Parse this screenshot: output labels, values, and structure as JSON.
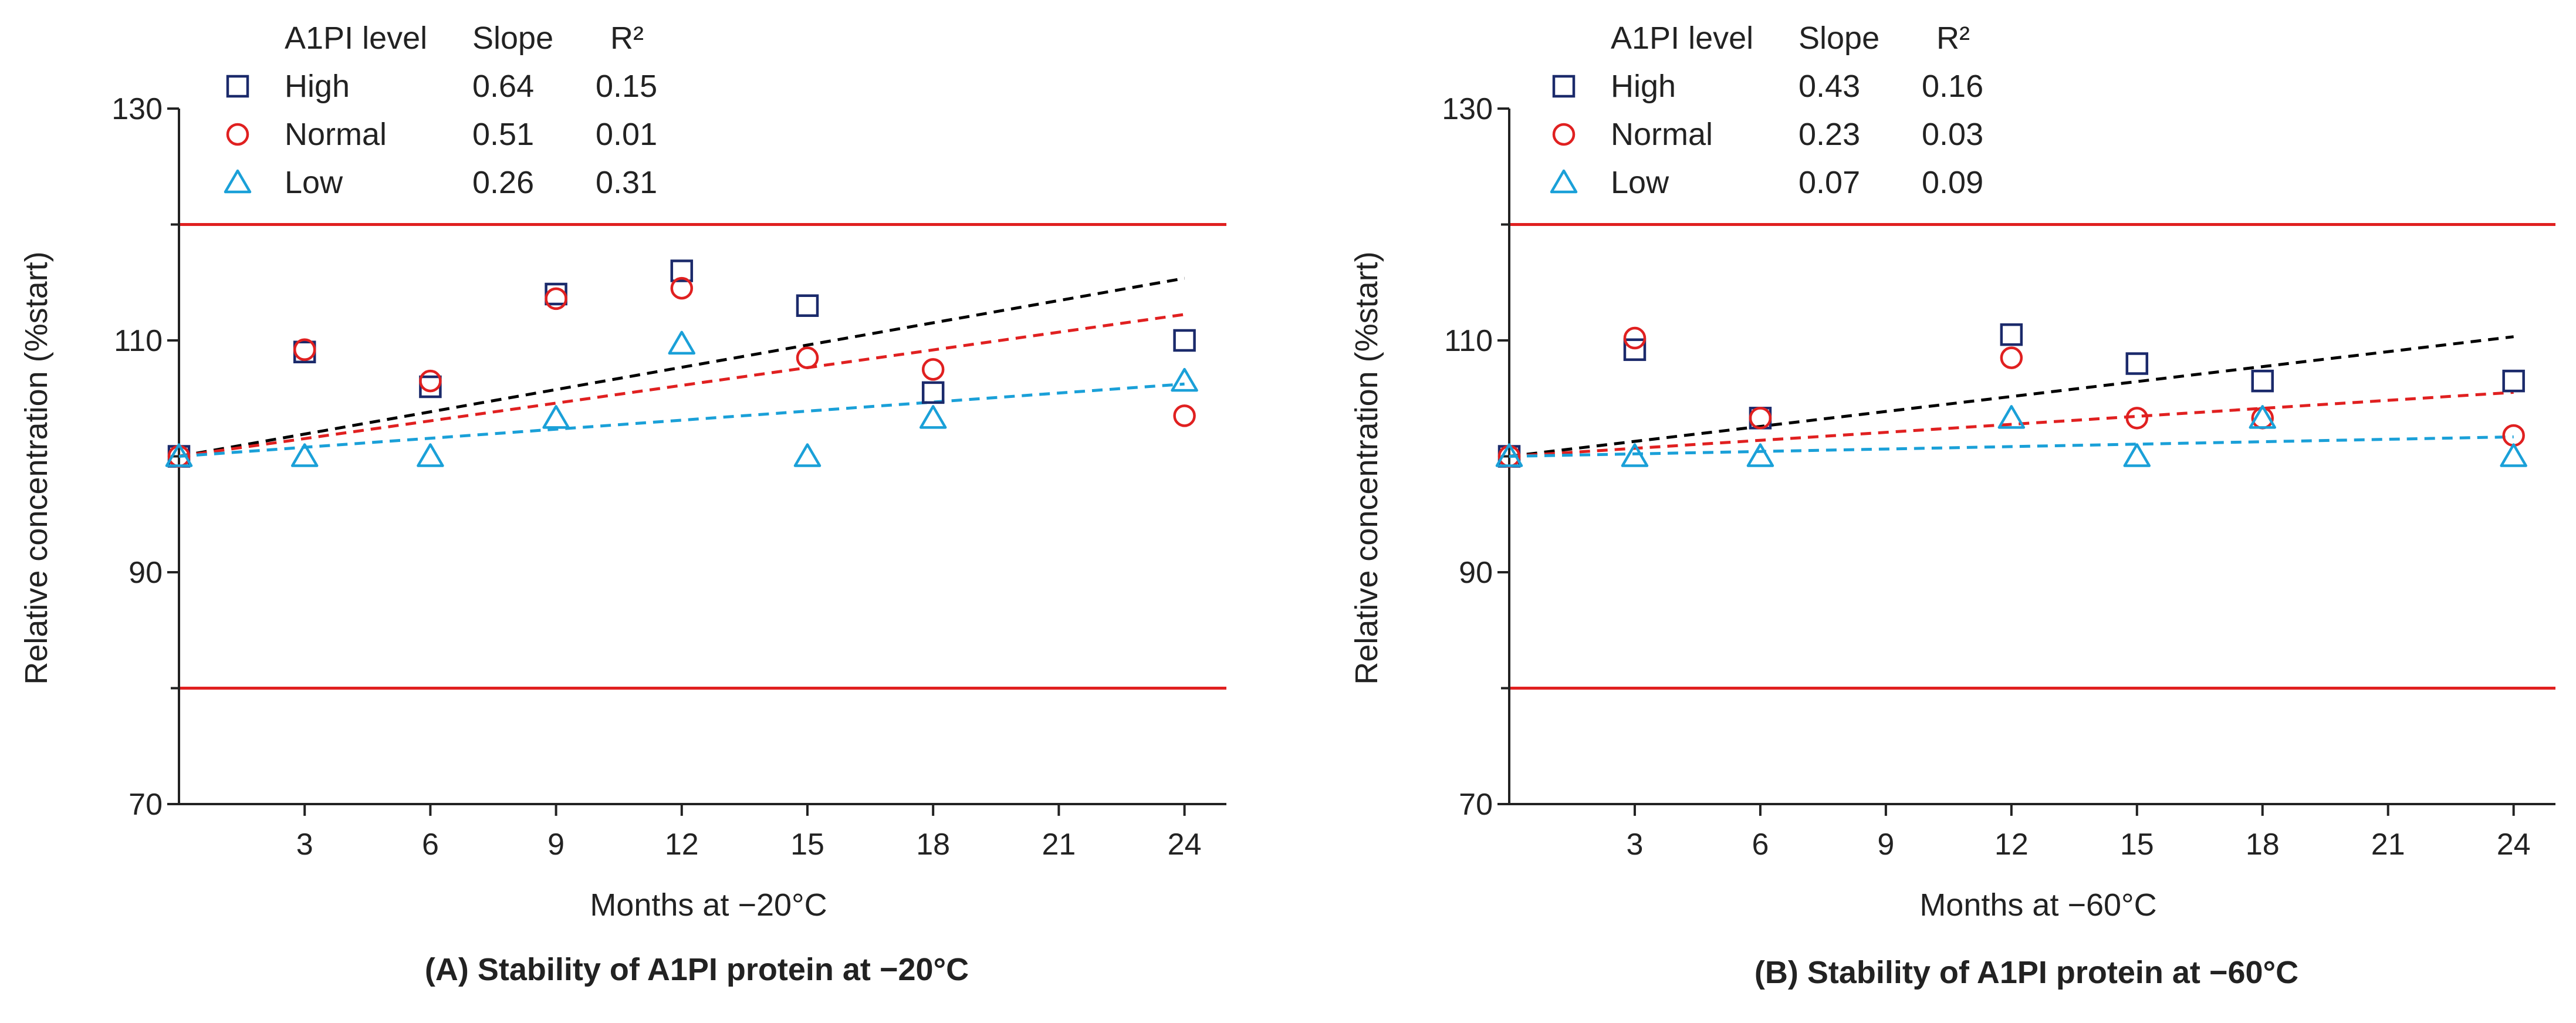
{
  "chart_data": [
    {
      "type": "scatter",
      "panel": "A",
      "title": "(A) Stability of A1PI protein at −20°C",
      "xlabel": "Months at −20°C",
      "ylabel": "Relative concentration (%start)",
      "xlim": [
        0,
        25
      ],
      "ylim": [
        70,
        130
      ],
      "xticks": [
        3,
        6,
        9,
        12,
        15,
        18,
        21,
        24
      ],
      "yticks": [
        70,
        90,
        110,
        130
      ],
      "limits": [
        80,
        120
      ],
      "limit_color": "#e02020",
      "grid": false,
      "legend_position": "top-left",
      "legend_headers": {
        "level": "A1PI level",
        "slope": "Slope",
        "r2": "R²"
      },
      "series": [
        {
          "name": "High",
          "marker": "square",
          "color": "#1b2a6b",
          "slope": "0.64",
          "r2": "0.15",
          "trend_color": "#000000",
          "trend_slope": 0.64,
          "trend_intercept": 100,
          "x": [
            0,
            3,
            6,
            9,
            12,
            15,
            18,
            24
          ],
          "y": [
            100,
            109,
            106,
            114,
            116,
            113,
            105.5,
            110
          ]
        },
        {
          "name": "Normal",
          "marker": "circle",
          "color": "#e02020",
          "slope": "0.51",
          "r2": "0.01",
          "trend_color": "#e02020",
          "trend_slope": 0.51,
          "trend_intercept": 100,
          "x": [
            0,
            3,
            6,
            9,
            12,
            15,
            18,
            24
          ],
          "y": [
            100,
            109.2,
            106.5,
            113.6,
            114.5,
            108.5,
            107.5,
            103.5
          ]
        },
        {
          "name": "Low",
          "marker": "triangle",
          "color": "#1aa0d8",
          "slope": "0.26",
          "r2": "0.31",
          "trend_color": "#1aa0d8",
          "trend_slope": 0.26,
          "trend_intercept": 100,
          "x": [
            0,
            3,
            6,
            9,
            12,
            15,
            18,
            24
          ],
          "y": [
            100,
            100,
            100,
            103.3,
            109.7,
            100,
            103.3,
            106.5
          ]
        }
      ]
    },
    {
      "type": "scatter",
      "panel": "B",
      "title": "(B) Stability of A1PI protein at −60°C",
      "xlabel": "Months at −60°C",
      "ylabel": "Relative concentration (%start)",
      "xlim": [
        0,
        25
      ],
      "ylim": [
        70,
        130
      ],
      "xticks": [
        3,
        6,
        9,
        12,
        15,
        18,
        21,
        24
      ],
      "yticks": [
        70,
        90,
        110,
        130
      ],
      "limits": [
        80,
        120
      ],
      "limit_color": "#e02020",
      "grid": false,
      "legend_position": "top-left",
      "legend_headers": {
        "level": "A1PI level",
        "slope": "Slope",
        "r2": "R²"
      },
      "series": [
        {
          "name": "High",
          "marker": "square",
          "color": "#1b2a6b",
          "slope": "0.43",
          "r2": "0.16",
          "trend_color": "#000000",
          "trend_slope": 0.43,
          "trend_intercept": 100,
          "x": [
            0,
            3,
            6,
            12,
            15,
            18,
            24
          ],
          "y": [
            100,
            109.2,
            103.3,
            110.5,
            108,
            106.5,
            106.5
          ]
        },
        {
          "name": "Normal",
          "marker": "circle",
          "color": "#e02020",
          "slope": "0.23",
          "r2": "0.03",
          "trend_color": "#e02020",
          "trend_slope": 0.23,
          "trend_intercept": 100,
          "x": [
            0,
            3,
            6,
            12,
            15,
            18,
            24
          ],
          "y": [
            100,
            110.2,
            103.3,
            108.5,
            103.3,
            103.3,
            101.8
          ]
        },
        {
          "name": "Low",
          "marker": "triangle",
          "color": "#1aa0d8",
          "slope": "0.07",
          "r2": "0.09",
          "trend_color": "#1aa0d8",
          "trend_slope": 0.07,
          "trend_intercept": 100,
          "x": [
            0,
            3,
            6,
            12,
            15,
            18,
            24
          ],
          "y": [
            100,
            100,
            100,
            103.3,
            100,
            103.3,
            100
          ]
        }
      ]
    }
  ]
}
